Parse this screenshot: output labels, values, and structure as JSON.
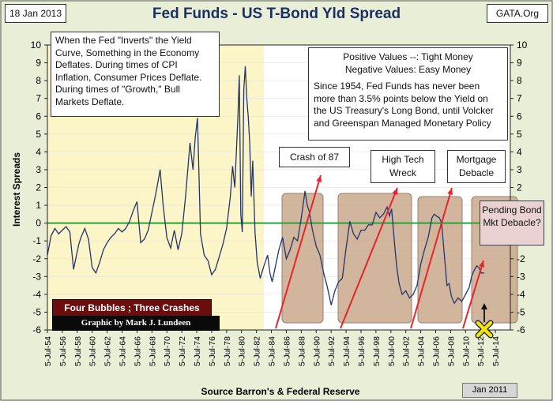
{
  "header": {
    "date": "18 Jan 2013",
    "title": "Fed Funds - US T-Bond Yld Spread",
    "site": "GATA.Org"
  },
  "notes": {
    "left": "When the Fed \"Inverts\" the Yield Curve, Something in the Economy Deflates.  During times of CPI Inflation, Consumer Prices Deflate.  During times of \"Growth,\" Bull Markets Deflate.",
    "right_title_1": "Positive Values --: Tight Money",
    "right_title_2": "Negative Values: Easy Money",
    "right_body": "Since 1954, Fed Funds has never been more than 3.5% points below the Yield on the US Treasury's Long Bond, until Volcker and Greenspan Managed Monetary Policy"
  },
  "callouts": {
    "crash87": "Crash of 87",
    "hightech": "High Tech Wreck",
    "mortgage": "Mortgage Debacle",
    "pending": "Pending Bond Mkt Debacle?"
  },
  "banners": {
    "bubbles": "Four Bubbles ; Three Crashes",
    "credit": "Graphic by Mark J. Lundeen"
  },
  "marker_label": "Jan 2011",
  "colors": {
    "plot_bg_left": "#fbf5c8",
    "plot_bg_right": "#ffffff",
    "series": "#24356b",
    "zero_line": "#2aa33a",
    "arrow": "#e8242a",
    "bubble_fill": "#c9a98c",
    "banner_red": "#6b0d0d",
    "banner_black": "#0a0a0a",
    "marker_yellow": "#f2e600"
  },
  "chart_data": {
    "type": "line",
    "title": "Fed Funds - US T-Bond Yld Spread",
    "xlabel": "Source Barron's & Federal Reserve",
    "ylabel": "Interest Spreads",
    "ylim": [
      -6,
      10
    ],
    "xlim": [
      1954.5,
      2016.5
    ],
    "yticks": [
      -6,
      -5,
      -4,
      -3,
      -2,
      -1,
      0,
      1,
      2,
      3,
      4,
      5,
      6,
      7,
      8,
      9,
      10
    ],
    "xtick_labels": [
      "5-Jul-54",
      "5-Jul-56",
      "5-Jul-58",
      "5-Jul-60",
      "5-Jul-62",
      "5-Jul-64",
      "5-Jul-66",
      "5-Jul-68",
      "5-Jul-70",
      "5-Jul-72",
      "5-Jul-74",
      "5-Jul-76",
      "5-Jul-78",
      "5-Jul-80",
      "5-Jul-82",
      "5-Jul-84",
      "5-Jul-86",
      "5-Jul-88",
      "5-Jul-90",
      "5-Jul-92",
      "5-Jul-94",
      "5-Jul-96",
      "5-Jul-98",
      "5-Jul-00",
      "5-Jul-02",
      "5-Jul-04",
      "5-Jul-06",
      "5-Jul-08",
      "5-Jul-10",
      "5-Jul-12",
      "5-Jul-14"
    ],
    "xtick_years": [
      1954,
      1956,
      1958,
      1960,
      1962,
      1964,
      1966,
      1968,
      1970,
      1972,
      1974,
      1976,
      1978,
      1980,
      1982,
      1984,
      1986,
      1988,
      1990,
      1992,
      1994,
      1996,
      1998,
      2000,
      2002,
      2004,
      2006,
      2008,
      2010,
      2012,
      2014
    ],
    "highlight_until_year": 1983.5,
    "series": [
      {
        "name": "Fed Funds minus T-Bond yield",
        "x": [
          1954.5,
          1955.0,
          1955.5,
          1956.0,
          1956.5,
          1957.0,
          1957.5,
          1958.0,
          1958.3,
          1958.7,
          1959.0,
          1959.5,
          1960.0,
          1960.5,
          1961.0,
          1961.5,
          1962.0,
          1962.5,
          1963.0,
          1963.5,
          1964.0,
          1964.5,
          1965.0,
          1965.5,
          1966.0,
          1966.5,
          1967.0,
          1967.5,
          1968.0,
          1968.5,
          1969.0,
          1969.3,
          1969.6,
          1970.0,
          1970.5,
          1971.0,
          1971.5,
          1972.0,
          1972.5,
          1973.0,
          1973.3,
          1973.6,
          1974.0,
          1974.3,
          1974.6,
          1975.0,
          1975.5,
          1976.0,
          1976.5,
          1977.0,
          1977.5,
          1978.0,
          1978.5,
          1979.0,
          1979.3,
          1979.6,
          1980.0,
          1980.2,
          1980.4,
          1980.6,
          1980.8,
          1981.0,
          1981.2,
          1981.4,
          1981.6,
          1981.8,
          1982.0,
          1982.3,
          1982.6,
          1983.0,
          1983.5,
          1984.0,
          1984.3,
          1984.6,
          1985.0,
          1985.5,
          1986.0,
          1986.5,
          1987.0,
          1987.5,
          1988.0,
          1988.5,
          1989.0,
          1989.3,
          1989.6,
          1990.0,
          1990.5,
          1991.0,
          1991.5,
          1992.0,
          1992.5,
          1993.0,
          1993.5,
          1994.0,
          1994.5,
          1995.0,
          1995.5,
          1996.0,
          1996.5,
          1997.0,
          1997.5,
          1998.0,
          1998.5,
          1999.0,
          1999.5,
          2000.0,
          2000.3,
          2000.6,
          2001.0,
          2001.3,
          2001.6,
          2002.0,
          2002.5,
          2003.0,
          2003.5,
          2004.0,
          2004.5,
          2005.0,
          2005.5,
          2006.0,
          2006.3,
          2006.6,
          2007.0,
          2007.3,
          2007.6,
          2008.0,
          2008.3,
          2008.6,
          2009.0,
          2009.5,
          2010.0,
          2010.5,
          2011.0,
          2011.3,
          2011.6,
          2012.0,
          2012.3,
          2012.6,
          2013.0
        ],
        "values": [
          -1.8,
          -0.7,
          -0.3,
          -0.6,
          -0.4,
          -0.2,
          -0.5,
          -2.6,
          -2.0,
          -1.2,
          -0.8,
          -0.3,
          -0.9,
          -2.5,
          -2.8,
          -2.2,
          -1.5,
          -1.1,
          -0.8,
          -0.6,
          -0.3,
          -0.5,
          -0.3,
          0.1,
          0.7,
          1.2,
          -1.1,
          -0.9,
          -0.4,
          0.6,
          1.6,
          2.3,
          3.0,
          1.0,
          -0.8,
          -1.4,
          -0.4,
          -1.5,
          -0.6,
          1.5,
          3.0,
          4.5,
          3.0,
          4.8,
          5.9,
          -0.6,
          -1.8,
          -2.1,
          -2.9,
          -2.6,
          -1.9,
          -1.2,
          -0.3,
          1.5,
          3.2,
          2.0,
          5.8,
          8.3,
          0.5,
          -0.5,
          7.5,
          8.8,
          7.0,
          6.0,
          4.5,
          1.5,
          3.5,
          -0.5,
          -2.2,
          -3.1,
          -2.4,
          -1.8,
          -2.8,
          -3.3,
          -2.5,
          -1.5,
          -0.8,
          -2.0,
          -1.5,
          -0.8,
          -1.0,
          0.3,
          1.8,
          1.0,
          0.6,
          -0.4,
          -1.3,
          -1.8,
          -2.8,
          -3.6,
          -4.6,
          -3.8,
          -3.3,
          -3.1,
          -1.4,
          0.1,
          -0.6,
          -0.9,
          -0.4,
          -0.4,
          -0.1,
          -0.1,
          0.6,
          0.3,
          0.5,
          0.9,
          0.4,
          0.8,
          -1.2,
          -2.5,
          -3.4,
          -4.0,
          -3.8,
          -4.2,
          -4.0,
          -3.5,
          -2.3,
          -1.5,
          -0.8,
          0.3,
          0.5,
          0.4,
          0.3,
          0.0,
          -1.5,
          -3.5,
          -3.4,
          -4.1,
          -4.5,
          -4.2,
          -4.4,
          -4.0,
          -3.6,
          -3.0,
          -2.7,
          -2.4,
          -2.5,
          -2.8,
          -2.8
        ]
      }
    ],
    "annotations": [
      "Crash of 87",
      "High Tech Wreck",
      "Mortgage Debacle",
      "Pending Bond Mkt Debacle?"
    ]
  }
}
